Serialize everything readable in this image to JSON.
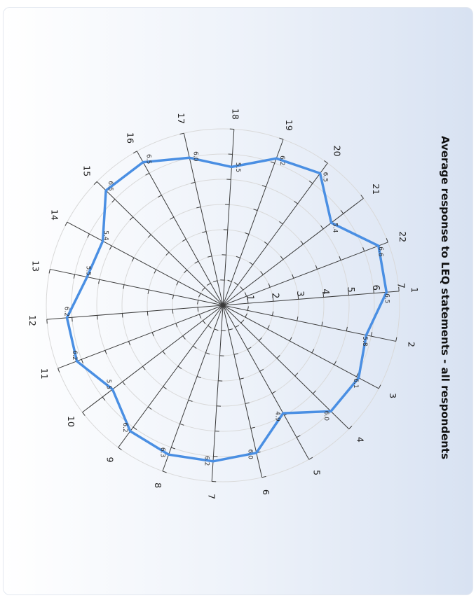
{
  "chart_data": {
    "type": "radar",
    "title": "Average response to LEQ statements - all respondents",
    "categories": [
      "1",
      "2",
      "3",
      "4",
      "5",
      "6",
      "7",
      "8",
      "9",
      "10",
      "11",
      "12",
      "13",
      "14",
      "15",
      "16",
      "17",
      "18",
      "19",
      "20",
      "21",
      "22"
    ],
    "series": [
      {
        "values": [
          6.5,
          5.8,
          6.1,
          6.0,
          4.9,
          6.0,
          6.2,
          6.3,
          6.2,
          5.5,
          6.2,
          6.2,
          5.5,
          5.4,
          6.5,
          6.5,
          6.0,
          5.5,
          6.2,
          6.5,
          5.4,
          6.6
        ],
        "color": "#4a8fe3"
      }
    ],
    "value_labels": [
      "6.5",
      "5.8",
      "6.1",
      "6.0",
      "4.9",
      "6.0",
      "6.2",
      "6.3",
      "6.2",
      "5.5",
      "6.2",
      "6.2",
      "5.5",
      "5.4",
      "6.5",
      "6.5",
      "6.0",
      "5.5",
      "6.2",
      "6.5",
      "5.4",
      "6.6"
    ],
    "rlim": [
      0,
      7
    ],
    "ring_labels": [
      "1",
      "2",
      "3",
      "4",
      "5",
      "6",
      "7"
    ],
    "grid": true,
    "orientation": "rotated 90° clockwise"
  }
}
